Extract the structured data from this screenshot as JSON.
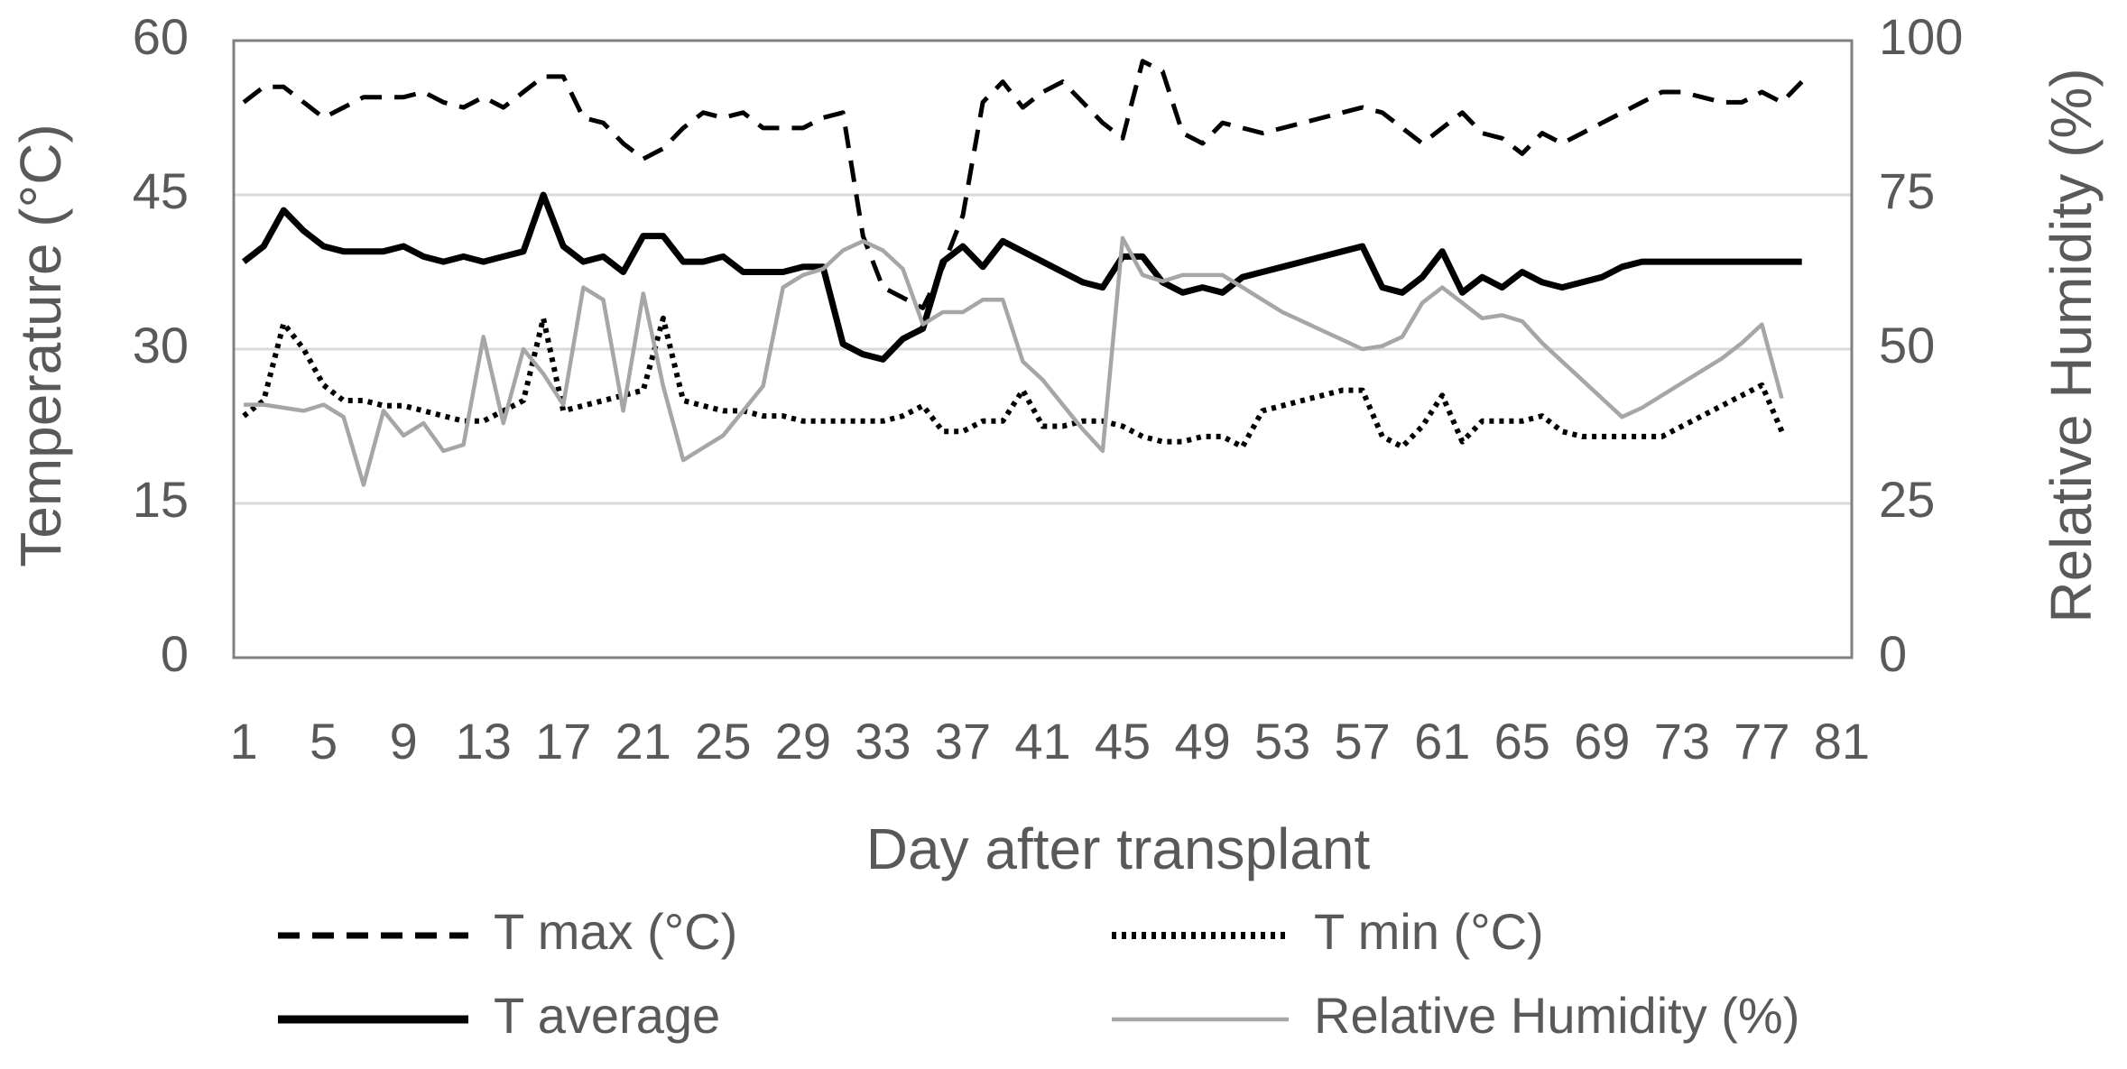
{
  "chart_data": {
    "type": "line",
    "x_label": "Day after transplant",
    "y_label": "Temperature (°C)",
    "y2_label": "Relative Humidity (%)",
    "categories": [
      1,
      null,
      null,
      null,
      5,
      null,
      null,
      null,
      9,
      null,
      null,
      null,
      13,
      null,
      null,
      null,
      17,
      null,
      null,
      null,
      21,
      null,
      null,
      null,
      25,
      null,
      null,
      null,
      29,
      null,
      null,
      null,
      33,
      null,
      null,
      null,
      37,
      null,
      null,
      null,
      41,
      null,
      null,
      null,
      45,
      null,
      null,
      null,
      49,
      null,
      null,
      null,
      53,
      null,
      null,
      null,
      57,
      null,
      null,
      null,
      61,
      null,
      null,
      null,
      65,
      null,
      null,
      null,
      69,
      null,
      null,
      null,
      73,
      null,
      null,
      null,
      77,
      null,
      null,
      null,
      81
    ],
    "ylim": [
      0,
      60
    ],
    "yticks": [
      0,
      15,
      30,
      45,
      60
    ],
    "y2lim": [
      0,
      100
    ],
    "y2ticks": [
      0,
      25,
      50,
      75,
      100
    ],
    "grid": true,
    "legend": "bottom",
    "series": [
      {
        "name": "T max (°C)",
        "color": "#000000",
        "line_style": "dashed",
        "values": [
          54,
          55.5,
          55.5,
          54,
          52.5,
          53.5,
          54.5,
          54.5,
          54.5,
          55,
          54,
          53.5,
          54.5,
          53.5,
          55,
          56.5,
          56.5,
          52.5,
          52,
          50,
          48.5,
          49.5,
          51.5,
          53,
          52.5,
          53,
          51.5,
          51.5,
          51.5,
          52.5,
          53,
          41,
          36,
          35,
          34,
          38,
          43,
          54,
          56,
          53.5,
          55,
          56,
          54,
          52,
          50.5,
          58,
          57,
          51,
          50,
          52,
          51.5,
          51,
          51.5,
          52,
          52.5,
          53,
          53.5,
          53,
          51.5,
          50,
          51.5,
          53,
          51,
          50.5,
          49,
          51,
          50,
          51,
          52,
          53,
          54,
          55,
          55,
          54.5,
          54,
          54,
          55,
          54,
          56,
          null,
          null
        ]
      },
      {
        "name": "T min (°C)",
        "color": "#000000",
        "line_style": "dotted",
        "values": [
          23.5,
          25,
          32.5,
          30,
          26.5,
          25,
          25,
          24.5,
          24.5,
          24,
          23.5,
          23,
          23,
          24,
          25,
          33,
          24,
          24.5,
          25,
          25.5,
          26,
          33,
          25,
          24.5,
          24,
          24,
          23.5,
          23.5,
          23,
          23,
          23,
          23,
          23,
          23.5,
          24.5,
          22,
          22,
          23,
          23,
          26,
          22.5,
          22.5,
          23,
          23,
          22.5,
          21.5,
          21,
          21,
          21.5,
          21.5,
          20.5,
          24,
          24.5,
          25,
          25.5,
          26,
          26,
          21.5,
          20.5,
          22.5,
          25.5,
          21,
          23,
          23,
          23,
          23.5,
          22,
          21.5,
          21.5,
          21.5,
          21.5,
          21.5,
          22.5,
          23.5,
          24.5,
          25.5,
          26.5,
          22,
          null,
          null,
          null
        ]
      },
      {
        "name": "T average",
        "color": "#000000",
        "line_style": "solid",
        "values": [
          38.5,
          40,
          43.5,
          41.5,
          40,
          39.5,
          39.5,
          39.5,
          40,
          39,
          38.5,
          39,
          38.5,
          39,
          39.5,
          45,
          40,
          38.5,
          39,
          37.5,
          41,
          41,
          38.5,
          38.5,
          39,
          37.5,
          37.5,
          37.5,
          38,
          38,
          30.5,
          29.5,
          29,
          31,
          32,
          38.5,
          40,
          38,
          40.5,
          39.5,
          38.5,
          37.5,
          36.5,
          36,
          39,
          39,
          36.5,
          35.5,
          36,
          35.5,
          37,
          37.5,
          38,
          38.5,
          39,
          39.5,
          40,
          36,
          35.5,
          37,
          39.5,
          35.5,
          37,
          36,
          37.5,
          36.5,
          36,
          36.5,
          37,
          38,
          38.5,
          38.5,
          38.5,
          38.5,
          38.5,
          38.5,
          38.5,
          38.5,
          38.5,
          null,
          null
        ]
      },
      {
        "name": "Relative Humidity (%)",
        "color": "#a6a6a6",
        "line_style": "solid",
        "axis": "y2",
        "values": [
          41,
          41,
          40.5,
          40,
          41,
          39,
          28,
          40,
          36,
          38,
          33.5,
          34.5,
          52,
          38,
          50,
          46,
          41,
          60,
          58,
          40,
          59,
          44,
          32,
          34,
          36,
          40,
          44,
          60,
          62,
          63,
          66,
          67.5,
          66,
          63,
          54,
          56,
          56,
          58,
          58,
          48,
          45,
          41,
          37,
          33.5,
          68,
          62,
          61,
          62,
          62,
          62,
          60,
          58,
          56,
          54.5,
          53,
          51.5,
          50,
          50.5,
          52,
          57.5,
          60,
          57.5,
          55,
          55.5,
          54.5,
          51,
          48,
          45,
          42,
          39,
          40.5,
          42.5,
          44.5,
          46.5,
          48.5,
          51,
          54,
          42,
          null,
          null,
          null
        ]
      }
    ]
  }
}
